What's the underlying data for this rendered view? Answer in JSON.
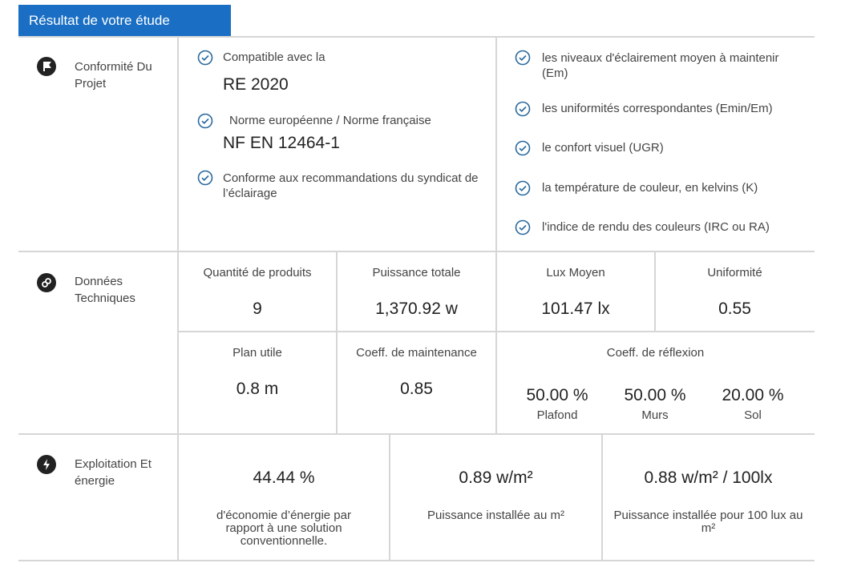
{
  "header": {
    "title": "Résultat de votre étude"
  },
  "conformity": {
    "label": "Conformité Du Projet",
    "items": [
      {
        "text": "Compatible avec la",
        "value": "RE 2020"
      },
      {
        "text": "Norme européenne / Norme française",
        "value": "NF EN 12464-1"
      },
      {
        "text": "Conforme aux recommandations du syndicat de l’éclairage"
      }
    ],
    "criteria": [
      "les niveaux d'éclairement moyen à maintenir (Em)",
      "les uniformités correspondantes (Emin/Em)",
      "le confort visuel (UGR)",
      "la température de couleur, en kelvins (K)",
      "l'indice de rendu des couleurs (IRC ou RA)"
    ]
  },
  "technical": {
    "label": "Données Techniques",
    "cells": [
      {
        "label": "Quantité de produits",
        "value": "9"
      },
      {
        "label": "Puissance totale",
        "value": "1,370.92 w"
      },
      {
        "label": "Lux Moyen",
        "value": "101.47 lx"
      },
      {
        "label": "Uniformité",
        "value": "0.55"
      },
      {
        "label": "Plan utile",
        "value": "0.8 m"
      },
      {
        "label": "Coeff. de maintenance",
        "value": "0.85"
      }
    ],
    "reflection": {
      "label": "Coeff. de réflexion",
      "surfaces": [
        {
          "value": "50.00 %",
          "label": "Plafond"
        },
        {
          "value": "50.00 %",
          "label": "Murs"
        },
        {
          "value": "20.00 %",
          "label": "Sol"
        }
      ]
    }
  },
  "energy": {
    "label": "Exploitation Et énergie",
    "cells": [
      {
        "value": "44.44 %",
        "label": "d'économie d’énergie par rapport à une solution conventionnelle."
      },
      {
        "value": "0.89 w/m²",
        "label": "Puissance installée au m²"
      },
      {
        "value": "0.88 w/m² / 100lx",
        "label": "Puissance installée pour 100 lux au m²"
      }
    ]
  }
}
